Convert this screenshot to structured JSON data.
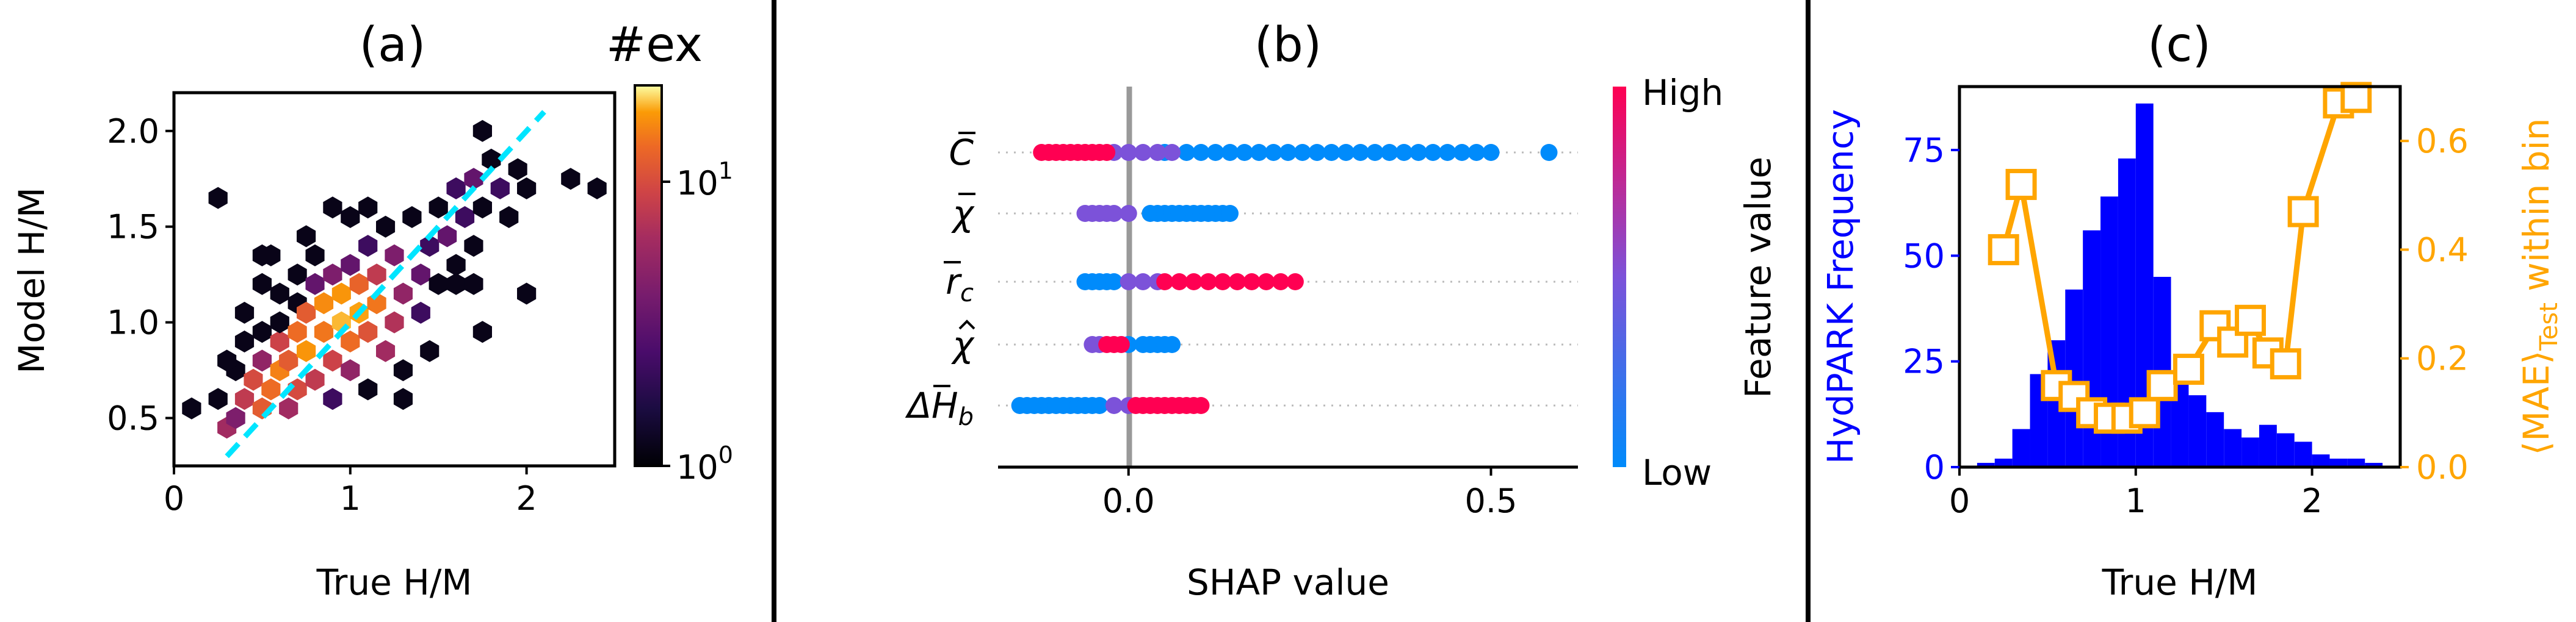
{
  "chart_data": [
    {
      "type": "heatmap",
      "panel": "(a)",
      "title": "(a)",
      "xlabel": "True H/M",
      "ylabel": "Model H/M",
      "xlim": [
        0,
        2.5
      ],
      "ylim": [
        0.25,
        2.2
      ],
      "xticks": [
        0,
        1,
        2
      ],
      "yticks": [
        0.5,
        1.0,
        1.5,
        2.0
      ],
      "colorbar_label": "#ex",
      "colorbar_scale": "log",
      "colorbar_range": [
        1,
        20
      ],
      "colorbar_ticks": [
        "10^0",
        "10^1"
      ],
      "colormap": "inferno",
      "diagonal_line": {
        "from": [
          0.3,
          0.3
        ],
        "to": [
          2.1,
          2.1
        ],
        "color": "#00e5ff",
        "style": "dashed"
      },
      "hexbins": [
        [
          0.1,
          0.55,
          1
        ],
        [
          0.25,
          0.6,
          1
        ],
        [
          0.3,
          0.45,
          6
        ],
        [
          0.35,
          0.5,
          4
        ],
        [
          0.4,
          0.6,
          8
        ],
        [
          0.35,
          0.75,
          1
        ],
        [
          0.3,
          0.8,
          1
        ],
        [
          0.4,
          0.9,
          1
        ],
        [
          0.4,
          1.05,
          1
        ],
        [
          0.45,
          0.7,
          10
        ],
        [
          0.5,
          0.55,
          12
        ],
        [
          0.5,
          0.8,
          5
        ],
        [
          0.55,
          0.65,
          14
        ],
        [
          0.5,
          0.95,
          1
        ],
        [
          0.5,
          1.2,
          1
        ],
        [
          0.55,
          1.35,
          1
        ],
        [
          0.6,
          0.75,
          16
        ],
        [
          0.6,
          0.9,
          9
        ],
        [
          0.6,
          1.0,
          1
        ],
        [
          0.65,
          0.55,
          6
        ],
        [
          0.65,
          0.8,
          12
        ],
        [
          0.7,
          0.65,
          10
        ],
        [
          0.7,
          0.95,
          14
        ],
        [
          0.7,
          1.1,
          1
        ],
        [
          0.7,
          1.25,
          1
        ],
        [
          0.75,
          0.85,
          18
        ],
        [
          0.75,
          1.05,
          12
        ],
        [
          0.8,
          0.7,
          8
        ],
        [
          0.8,
          1.2,
          3
        ],
        [
          0.8,
          1.35,
          1
        ],
        [
          0.85,
          0.95,
          15
        ],
        [
          0.85,
          1.1,
          17
        ],
        [
          0.9,
          0.6,
          2
        ],
        [
          0.9,
          0.8,
          9
        ],
        [
          0.9,
          1.25,
          4
        ],
        [
          0.95,
          1.0,
          20
        ],
        [
          0.95,
          1.15,
          18
        ],
        [
          1.0,
          0.75,
          5
        ],
        [
          1.0,
          0.9,
          14
        ],
        [
          1.0,
          1.3,
          3
        ],
        [
          1.05,
          1.05,
          19
        ],
        [
          1.05,
          1.2,
          13
        ],
        [
          1.1,
          0.95,
          11
        ],
        [
          1.1,
          1.4,
          2
        ],
        [
          1.1,
          0.65,
          1
        ],
        [
          1.15,
          1.1,
          15
        ],
        [
          1.15,
          1.25,
          8
        ],
        [
          1.2,
          0.85,
          6
        ],
        [
          1.2,
          1.5,
          1
        ],
        [
          1.25,
          1.0,
          7
        ],
        [
          1.25,
          1.35,
          4
        ],
        [
          1.3,
          1.15,
          5
        ],
        [
          1.3,
          0.75,
          1
        ],
        [
          1.35,
          1.55,
          1
        ],
        [
          1.4,
          1.25,
          3
        ],
        [
          1.4,
          1.05,
          2
        ],
        [
          1.45,
          1.4,
          2
        ],
        [
          1.5,
          1.2,
          1
        ],
        [
          1.5,
          1.6,
          1
        ],
        [
          1.55,
          1.45,
          3
        ],
        [
          1.6,
          1.3,
          1
        ],
        [
          1.6,
          1.7,
          2
        ],
        [
          1.65,
          1.55,
          2
        ],
        [
          1.7,
          1.4,
          1
        ],
        [
          1.7,
          1.75,
          3
        ],
        [
          1.75,
          1.6,
          1
        ],
        [
          1.8,
          1.85,
          1
        ],
        [
          1.85,
          1.7,
          2
        ],
        [
          1.9,
          1.55,
          1
        ],
        [
          1.95,
          1.8,
          1
        ],
        [
          2.0,
          1.7,
          1
        ],
        [
          1.75,
          2.0,
          1
        ],
        [
          1.1,
          1.6,
          1
        ],
        [
          1.0,
          1.55,
          1
        ],
        [
          0.9,
          1.6,
          1
        ],
        [
          0.25,
          1.65,
          1
        ],
        [
          0.6,
          1.15,
          1
        ],
        [
          1.3,
          0.6,
          1
        ],
        [
          1.45,
          0.85,
          1
        ],
        [
          1.75,
          0.95,
          1
        ],
        [
          2.0,
          1.15,
          1
        ],
        [
          1.6,
          1.2,
          1
        ],
        [
          2.25,
          1.75,
          1
        ],
        [
          2.4,
          1.7,
          1
        ],
        [
          1.7,
          1.2,
          1
        ],
        [
          0.75,
          1.45,
          1
        ],
        [
          0.5,
          1.35,
          1
        ]
      ]
    },
    {
      "type": "scatter",
      "panel": "(b)",
      "title": "(b)",
      "xlabel": "SHAP value",
      "xlim": [
        -0.18,
        0.62
      ],
      "xticks": [
        0.0,
        0.5
      ],
      "xtick_labels": [
        "0.0",
        "0.5"
      ],
      "features": [
        "C̄",
        "χ̄",
        "r̄_c",
        "χ̂",
        "ΔH̄_b"
      ],
      "feature_labels": [
        {
          "base": "C",
          "accent": "bar",
          "sub": ""
        },
        {
          "base": "χ",
          "accent": "bar",
          "sub": ""
        },
        {
          "base": "r",
          "accent": "bar",
          "sub": "c"
        },
        {
          "base": "χ",
          "accent": "hat",
          "sub": ""
        },
        {
          "base": "ΔH",
          "accent": "bar",
          "sub": "b"
        }
      ],
      "colorbar_label": "Feature value",
      "colorbar_high": "High",
      "colorbar_low": "Low",
      "color_high": "#ff0052",
      "color_low": "#008bfb",
      "rows": [
        {
          "feature": "C̄",
          "low_values": [
            0.05,
            0.08,
            0.1,
            0.12,
            0.14,
            0.16,
            0.18,
            0.2,
            0.22,
            0.24,
            0.26,
            0.28,
            0.3,
            0.32,
            0.34,
            0.36,
            0.38,
            0.4,
            0.42,
            0.44,
            0.46,
            0.48,
            0.5,
            0.58
          ],
          "mid_values": [
            -0.02,
            0.0,
            0.02,
            0.04,
            0.06
          ],
          "high_values": [
            -0.12,
            -0.11,
            -0.1,
            -0.09,
            -0.08,
            -0.07,
            -0.06,
            -0.05,
            -0.04,
            -0.03
          ]
        },
        {
          "feature": "χ̄",
          "low_values": [
            0.03,
            0.04,
            0.05,
            0.06,
            0.07,
            0.08,
            0.09,
            0.1,
            0.11,
            0.12,
            0.13,
            0.14
          ],
          "mid_values": [
            -0.06,
            -0.05,
            -0.04,
            -0.03,
            -0.02,
            0.0
          ],
          "high_values": []
        },
        {
          "feature": "r̄_c",
          "low_values": [
            -0.06,
            -0.05,
            -0.04,
            -0.03,
            -0.02
          ],
          "mid_values": [
            0.0,
            0.02,
            0.04
          ],
          "high_values": [
            0.05,
            0.07,
            0.09,
            0.11,
            0.13,
            0.15,
            0.17,
            0.19,
            0.21,
            0.23
          ]
        },
        {
          "feature": "χ̂",
          "low_values": [
            0.0,
            0.02,
            0.03,
            0.04,
            0.05,
            0.06
          ],
          "mid_values": [
            -0.05,
            -0.04
          ],
          "high_values": [
            -0.03,
            -0.02,
            -0.01
          ]
        },
        {
          "feature": "ΔH̄_b",
          "low_values": [
            -0.15,
            -0.14,
            -0.13,
            -0.12,
            -0.11,
            -0.1,
            -0.09,
            -0.08,
            -0.07,
            -0.06,
            -0.05,
            -0.04
          ],
          "mid_values": [
            -0.02,
            0.0
          ],
          "high_values": [
            0.01,
            0.02,
            0.03,
            0.04,
            0.05,
            0.06,
            0.07,
            0.08,
            0.09,
            0.1
          ]
        }
      ]
    },
    {
      "type": "bar",
      "panel": "(c)",
      "title": "(c)",
      "xlabel": "True H/M",
      "ylabel": "HydPARK Frequency",
      "ylabel_color": "#0000ff",
      "xlim": [
        0,
        2.5
      ],
      "ylim": [
        0,
        90
      ],
      "xticks": [
        0,
        1,
        2
      ],
      "yticks": [
        0,
        25,
        50,
        75
      ],
      "bar_color": "#0000ff",
      "bin_width": 0.1,
      "bin_starts": [
        0.1,
        0.2,
        0.3,
        0.4,
        0.5,
        0.6,
        0.7,
        0.8,
        0.9,
        1.0,
        1.1,
        1.2,
        1.3,
        1.4,
        1.5,
        1.6,
        1.7,
        1.8,
        1.9,
        2.0,
        2.1,
        2.2,
        2.3
      ],
      "values": [
        1,
        2,
        9,
        22,
        30,
        42,
        56,
        64,
        73,
        86,
        45,
        22,
        17,
        13,
        9,
        7,
        10,
        8,
        6,
        3,
        2,
        2,
        1
      ],
      "series2": {
        "name": "",
        "ylabel_prefix": "⟨MAE⟩",
        "ylabel_sub": "Test",
        "ylabel_suffix": " within bin",
        "ylabel_color": "#ffa500",
        "type": "line",
        "marker": "square-open",
        "ylim": [
          0,
          0.7
        ],
        "yticks": [
          0.0,
          0.2,
          0.4,
          0.6
        ],
        "ytick_labels": [
          "0.0",
          "0.2",
          "0.4",
          "0.6"
        ],
        "x": [
          0.25,
          0.35,
          0.55,
          0.65,
          0.75,
          0.85,
          0.95,
          1.05,
          1.15,
          1.3,
          1.45,
          1.55,
          1.65,
          1.75,
          1.85,
          1.95,
          2.15,
          2.25
        ],
        "y": [
          0.4,
          0.52,
          0.15,
          0.13,
          0.1,
          0.09,
          0.09,
          0.1,
          0.15,
          0.18,
          0.26,
          0.23,
          0.27,
          0.21,
          0.19,
          0.47,
          0.67,
          0.68
        ]
      }
    }
  ]
}
